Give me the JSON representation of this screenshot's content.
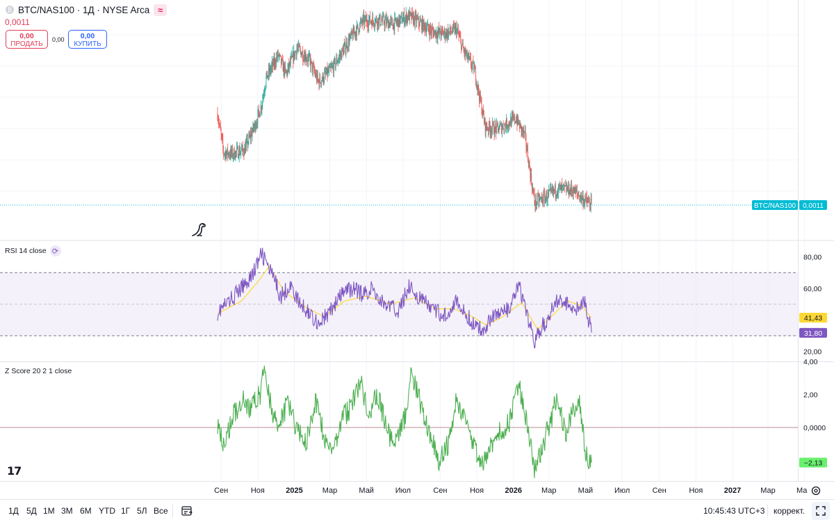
{
  "header": {
    "symbol_title": "BTC/NAS100 · 1Д · NYSE Arca",
    "approx_icon": "≈",
    "last_value": "0,0011"
  },
  "trade": {
    "sell_price": "0,00",
    "sell_label": "ПРОДАТЬ",
    "spread": "0,00",
    "buy_price": "0,00",
    "buy_label": "КУПИТЬ"
  },
  "panes": {
    "rsi_title": "RSI 14 close",
    "z_title": "Z Score 20 2 1 close"
  },
  "toolbar": {
    "timeframes": [
      "1Д",
      "5Д",
      "1М",
      "3М",
      "6М",
      "YTD",
      "1Г",
      "5Л",
      "Все"
    ],
    "time": "10:45:43 UTC+3",
    "adjust": "коррект."
  },
  "colors": {
    "up": "#26a69a",
    "down": "#ef5350",
    "rsi": "#7e57c2",
    "rsi_ma": "#fdd835",
    "zscore": "#4caf50",
    "price_line": "#00bcd4"
  },
  "icons": [
    "dinosaur-icon",
    "refresh-icon",
    "tradingview-logo-icon",
    "compare-icon",
    "settings-icon",
    "fullscreen-icon"
  ],
  "chart_data": [
    {
      "type": "candlestick",
      "series_label": "BTC/NAS100",
      "last": 0.0011,
      "last_label": "0,0011",
      "x_start": "2024-08-26",
      "x_ticks": [
        "Сен",
        "Ноя",
        "2025",
        "Мар",
        "Май",
        "Июл",
        "Сен",
        "Ноя",
        "2026",
        "Мар",
        "Май",
        "Июл",
        "Сен",
        "Ноя",
        "2027",
        "Мар",
        "Ма"
      ],
      "close_path": [
        [
          "2024-08-26",
          0.00178
        ],
        [
          "2024-09-05",
          0.00149
        ],
        [
          "2024-09-20",
          0.00148
        ],
        [
          "2024-10-10",
          0.00151
        ],
        [
          "2024-10-28",
          0.0017
        ],
        [
          "2024-11-06",
          0.00182
        ],
        [
          "2024-11-15",
          0.00204
        ],
        [
          "2024-12-05",
          0.00221
        ],
        [
          "2024-12-18",
          0.00207
        ],
        [
          "2025-01-05",
          0.00226
        ],
        [
          "2025-01-25",
          0.00218
        ],
        [
          "2025-02-10",
          0.00201
        ],
        [
          "2025-03-05",
          0.00211
        ],
        [
          "2025-04-08",
          0.00236
        ],
        [
          "2025-04-25",
          0.00246
        ],
        [
          "2025-05-20",
          0.00247
        ],
        [
          "2025-06-15",
          0.00244
        ],
        [
          "2025-07-10",
          0.0025
        ],
        [
          "2025-07-25",
          0.00246
        ],
        [
          "2025-08-20",
          0.00238
        ],
        [
          "2025-09-10",
          0.00237
        ],
        [
          "2025-09-28",
          0.0024
        ],
        [
          "2025-10-10",
          0.00224
        ],
        [
          "2025-10-28",
          0.0021
        ],
        [
          "2025-11-15",
          0.00168
        ],
        [
          "2025-12-05",
          0.00166
        ],
        [
          "2026-01-05",
          0.00174
        ],
        [
          "2026-01-20",
          0.00161
        ],
        [
          "2026-02-05",
          0.00112
        ],
        [
          "2026-02-25",
          0.00116
        ],
        [
          "2026-03-15",
          0.00122
        ],
        [
          "2026-04-10",
          0.00121
        ],
        [
          "2026-04-28",
          0.00114
        ],
        [
          "2026-05-11",
          0.0011
        ]
      ],
      "price_line_value": 0.0011
    },
    {
      "type": "line",
      "title": "RSI 14 close",
      "y_ticks": [
        "80,00",
        "60,00",
        "20,00"
      ],
      "levels": [
        70,
        50,
        30
      ],
      "series": [
        {
          "name": "RSI",
          "last": 31.8,
          "last_label": "31,80",
          "points": [
            [
              "2024-08-26",
              45
            ],
            [
              "2024-09-10",
              50
            ],
            [
              "2024-10-05",
              60
            ],
            [
              "2024-10-25",
              70
            ],
            [
              "2024-11-08",
              82
            ],
            [
              "2024-11-25",
              68
            ],
            [
              "2024-12-10",
              55
            ],
            [
              "2024-12-25",
              62
            ],
            [
              "2025-01-10",
              50
            ],
            [
              "2025-01-25",
              45
            ],
            [
              "2025-02-10",
              38
            ],
            [
              "2025-02-25",
              43
            ],
            [
              "2025-03-10",
              50
            ],
            [
              "2025-03-25",
              58
            ],
            [
              "2025-04-10",
              60
            ],
            [
              "2025-04-25",
              56
            ],
            [
              "2025-05-10",
              60
            ],
            [
              "2025-05-25",
              52
            ],
            [
              "2025-06-10",
              48
            ],
            [
              "2025-06-25",
              46
            ],
            [
              "2025-07-10",
              62
            ],
            [
              "2025-07-25",
              55
            ],
            [
              "2025-08-10",
              50
            ],
            [
              "2025-08-25",
              45
            ],
            [
              "2025-09-10",
              43
            ],
            [
              "2025-09-25",
              52
            ],
            [
              "2025-10-10",
              45
            ],
            [
              "2025-10-25",
              38
            ],
            [
              "2025-11-10",
              33
            ],
            [
              "2025-11-25",
              42
            ],
            [
              "2025-12-10",
              45
            ],
            [
              "2025-12-25",
              46
            ],
            [
              "2026-01-10",
              62
            ],
            [
              "2026-01-25",
              40
            ],
            [
              "2026-02-05",
              27
            ],
            [
              "2026-02-15",
              34
            ],
            [
              "2026-03-01",
              42
            ],
            [
              "2026-03-15",
              53
            ],
            [
              "2026-03-30",
              50
            ],
            [
              "2026-04-15",
              48
            ],
            [
              "2026-04-30",
              50
            ],
            [
              "2026-05-11",
              32
            ]
          ]
        },
        {
          "name": "RSI MA",
          "last": 41.43,
          "last_label": "41,43",
          "points": [
            [
              "2024-08-26",
              44
            ],
            [
              "2024-10-05",
              52
            ],
            [
              "2024-11-05",
              66
            ],
            [
              "2024-11-20",
              74
            ],
            [
              "2024-12-15",
              58
            ],
            [
              "2025-01-20",
              48
            ],
            [
              "2025-02-20",
              42
            ],
            [
              "2025-03-25",
              52
            ],
            [
              "2025-05-01",
              55
            ],
            [
              "2025-06-10",
              50
            ],
            [
              "2025-07-20",
              54
            ],
            [
              "2025-08-25",
              47
            ],
            [
              "2025-09-25",
              47
            ],
            [
              "2025-10-25",
              42
            ],
            [
              "2025-11-15",
              37
            ],
            [
              "2025-12-10",
              41
            ],
            [
              "2026-01-15",
              51
            ],
            [
              "2026-02-10",
              34
            ],
            [
              "2026-03-10",
              44
            ],
            [
              "2026-04-01",
              52
            ],
            [
              "2026-04-25",
              49
            ],
            [
              "2026-05-11",
              41
            ]
          ]
        }
      ]
    },
    {
      "type": "line",
      "title": "Z Score 20 2 1 close",
      "y_ticks": [
        "4,00",
        "2,00",
        "0,0000"
      ],
      "levels": [
        0
      ],
      "series": [
        {
          "name": "Z Score",
          "last": -2.13,
          "last_label": "−2,13",
          "points": [
            [
              "2024-08-26",
              0.3
            ],
            [
              "2024-09-05",
              -1.2
            ],
            [
              "2024-09-20",
              0.6
            ],
            [
              "2024-10-05",
              1.7
            ],
            [
              "2024-10-20",
              1.2
            ],
            [
              "2024-11-05",
              2.0
            ],
            [
              "2024-11-12",
              3.5
            ],
            [
              "2024-11-25",
              1.0
            ],
            [
              "2024-12-05",
              -0.2
            ],
            [
              "2024-12-20",
              1.5
            ],
            [
              "2025-01-05",
              0.0
            ],
            [
              "2025-01-20",
              -1.0
            ],
            [
              "2025-02-05",
              1.5
            ],
            [
              "2025-02-20",
              -0.6
            ],
            [
              "2025-03-05",
              -1.6
            ],
            [
              "2025-03-20",
              0.5
            ],
            [
              "2025-04-05",
              1.2
            ],
            [
              "2025-04-20",
              2.8
            ],
            [
              "2025-05-05",
              1.0
            ],
            [
              "2025-05-20",
              2.0
            ],
            [
              "2025-06-05",
              -0.3
            ],
            [
              "2025-06-20",
              -1.0
            ],
            [
              "2025-07-05",
              0.8
            ],
            [
              "2025-07-15",
              3.3
            ],
            [
              "2025-07-30",
              1.5
            ],
            [
              "2025-08-15",
              -0.5
            ],
            [
              "2025-08-30",
              -2.0
            ],
            [
              "2025-09-15",
              -1.0
            ],
            [
              "2025-09-28",
              1.9
            ],
            [
              "2025-10-10",
              0.5
            ],
            [
              "2025-10-25",
              -1.0
            ],
            [
              "2025-11-10",
              -2.3
            ],
            [
              "2025-11-25",
              -1.0
            ],
            [
              "2025-12-10",
              -0.3
            ],
            [
              "2025-12-25",
              0.3
            ],
            [
              "2026-01-10",
              2.8
            ],
            [
              "2026-01-20",
              1.0
            ],
            [
              "2026-02-05",
              -2.5
            ],
            [
              "2026-02-20",
              -1.0
            ],
            [
              "2026-03-05",
              0.5
            ],
            [
              "2026-03-15",
              2.0
            ],
            [
              "2026-03-30",
              -0.5
            ],
            [
              "2026-04-10",
              1.2
            ],
            [
              "2026-04-22",
              1.5
            ],
            [
              "2026-05-01",
              -1.5
            ],
            [
              "2026-05-11",
              -2.13
            ]
          ]
        }
      ]
    }
  ]
}
